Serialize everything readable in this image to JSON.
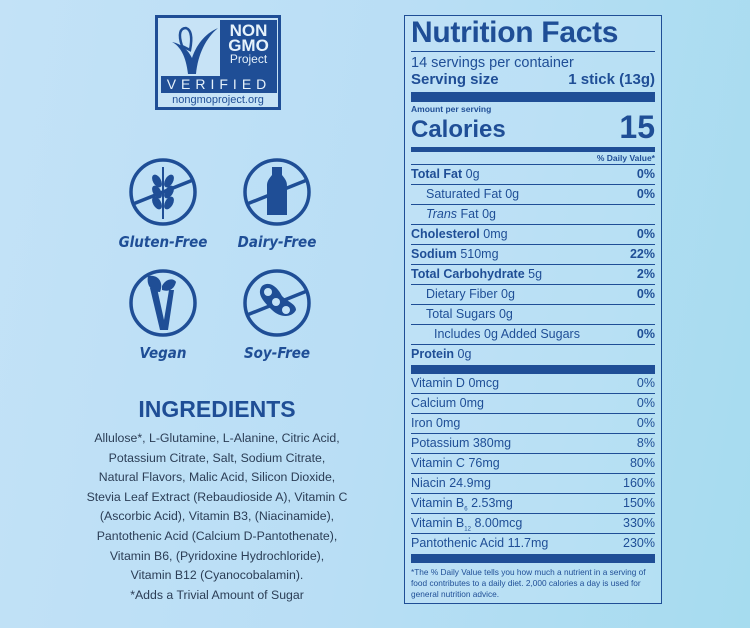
{
  "logo": {
    "line1": "NON",
    "line2": "GMO",
    "line3": "Project",
    "verified": "VERIFIED",
    "url": "nongmoproject.org"
  },
  "badges": [
    {
      "label": "Gluten-Free",
      "icon": "wheat-crossed-icon"
    },
    {
      "label": "Dairy-Free",
      "icon": "milk-bottle-crossed-icon"
    },
    {
      "label": "Vegan",
      "icon": "vegan-leaf-icon"
    },
    {
      "label": "Soy-Free",
      "icon": "soybean-crossed-icon"
    }
  ],
  "ingredients": {
    "title": "INGREDIENTS",
    "lines": [
      "Allulose*, L-Glutamine, L-Alanine, Citric Acid,",
      "Potassium Citrate, Salt, Sodium Citrate,",
      "Natural Flavors, Malic Acid, Silicon Dioxide,",
      "Stevia Leaf Extract (Rebaudioside A), Vitamin C",
      "(Ascorbic Acid), Vitamin B3, (Niacinamide),",
      "Pantothenic Acid (Calcium D-Pantothenate),",
      "Vitamin B6, (Pyridoxine Hydrochloride),",
      "Vitamin B12 (Cyanocobalamin).",
      "*Adds a Trivial Amount of Sugar"
    ]
  },
  "nutrition": {
    "title": "Nutrition Facts",
    "servings": "14 servings per container",
    "serving_size_label": "Serving size",
    "serving_size": "1 stick (13g)",
    "amount_per_serving": "Amount per serving",
    "calories_label": "Calories",
    "calories": "15",
    "dv_header": "% Daily Value*",
    "rows": [
      {
        "name": "Total Fat",
        "amount": "0g",
        "dv": "0%"
      },
      {
        "name": "Saturated Fat",
        "amount": "0g",
        "dv": "0%"
      },
      {
        "name": "Trans",
        "name2": "Fat",
        "amount": "0g",
        "dv": ""
      },
      {
        "name": "Cholesterol",
        "amount": "0mg",
        "dv": "0%"
      },
      {
        "name": "Sodium",
        "amount": "510mg",
        "dv": "22%"
      },
      {
        "name": "Total Carbohydrate",
        "amount": "5g",
        "dv": "2%"
      },
      {
        "name": "Dietary Fiber",
        "amount": "0g",
        "dv": "0%"
      },
      {
        "name": "Total Sugars",
        "amount": "0g",
        "dv": ""
      },
      {
        "name": "Includes 0g Added Sugars",
        "amount": "",
        "dv": "0%"
      },
      {
        "name": "Protein",
        "amount": "0g",
        "dv": ""
      }
    ],
    "vitamins": [
      {
        "name": "Vitamin D",
        "amount": "0mcg",
        "dv": "0%"
      },
      {
        "name": "Calcium",
        "amount": "0mg",
        "dv": "0%"
      },
      {
        "name": "Iron",
        "amount": "0mg",
        "dv": "0%"
      },
      {
        "name": "Potassium",
        "amount": "380mg",
        "dv": "8%"
      },
      {
        "name": "Vitamin C",
        "amount": "76mg",
        "dv": "80%"
      },
      {
        "name": "Niacin",
        "amount": "24.9mg",
        "dv": "160%"
      },
      {
        "name": "Vitamin B",
        "sub": "6",
        "amount": "2.53mg",
        "dv": "150%"
      },
      {
        "name": "Vitamin B",
        "sub": "12",
        "amount": "8.00mcg",
        "dv": "330%"
      },
      {
        "name": "Pantothenic Acid",
        "amount": "11.7mg",
        "dv": "230%"
      }
    ],
    "footnote": "*The % Daily Value tells you how much a nutrient in a serving of food contributes to a daily diet. 2,000 calories a day is used for general nutrition advice."
  },
  "colors": {
    "brand": "#1f4e96",
    "background": "#bfe0f5",
    "text": "#2b3d55"
  }
}
